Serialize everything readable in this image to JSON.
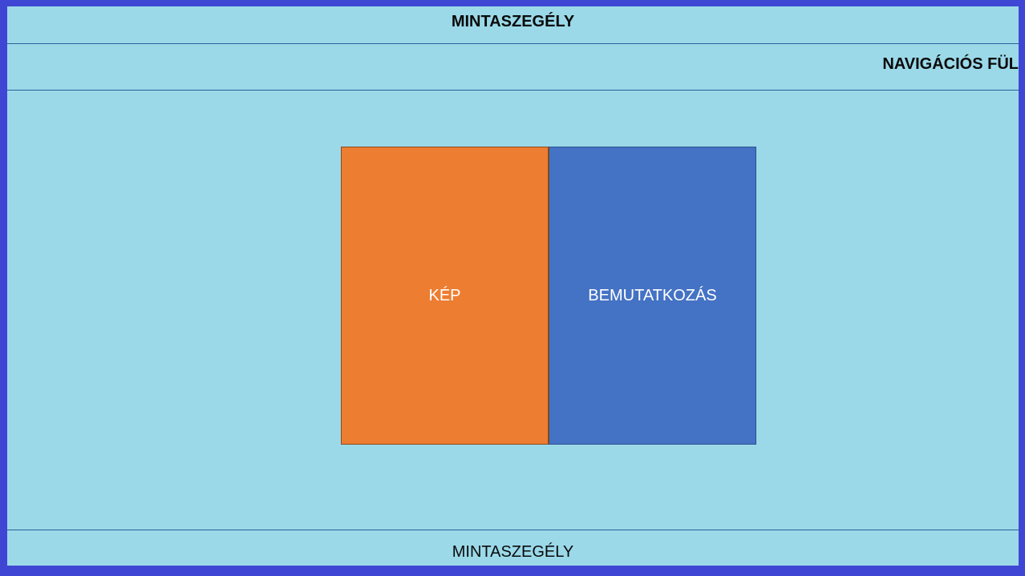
{
  "header": {
    "label": "MINTASZEGÉLY"
  },
  "nav": {
    "label": "NAVIGÁCIÓS FÜL"
  },
  "content": {
    "image_label": "KÉP",
    "intro_label": "BEMUTATKOZÁS"
  },
  "footer": {
    "label": "MINTASZEGÉLY"
  },
  "colors": {
    "outer_border": "#3f46d3",
    "background": "#9bd9e9",
    "image_box": "#ed7d31",
    "intro_box": "#4472c4",
    "divider": "#2f5f9a"
  }
}
